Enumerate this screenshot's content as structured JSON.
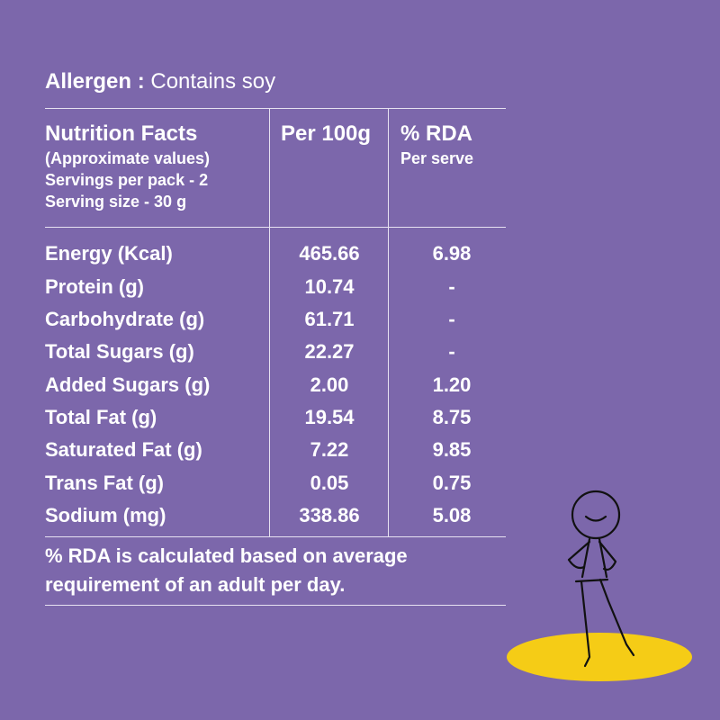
{
  "allergen": {
    "label": "Allergen :",
    "value": "Contains soy"
  },
  "header": {
    "title": "Nutrition Facts",
    "subtitle_lines": [
      "(Approximate values)",
      "Servings per pack - 2",
      "Serving size - 30 g"
    ],
    "col_per100": "Per 100g",
    "col_rda": "% RDA",
    "col_rda_sub": "Per serve"
  },
  "rows": [
    {
      "name": "Energy (Kcal)",
      "per100g": "465.66",
      "rda": "6.98"
    },
    {
      "name": "Protein (g)",
      "per100g": "10.74",
      "rda": "-"
    },
    {
      "name": "Carbohydrate (g)",
      "per100g": "61.71",
      "rda": "-"
    },
    {
      "name": "Total Sugars (g)",
      "per100g": "22.27",
      "rda": "-"
    },
    {
      "name": "Added Sugars (g)",
      "per100g": "2.00",
      "rda": "1.20"
    },
    {
      "name": "Total Fat (g)",
      "per100g": "19.54",
      "rda": "8.75"
    },
    {
      "name": "Saturated Fat (g)",
      "per100g": "7.22",
      "rda": "9.85"
    },
    {
      "name": "Trans Fat (g)",
      "per100g": "0.05",
      "rda": "0.75"
    },
    {
      "name": "Sodium (mg)",
      "per100g": "338.86",
      "rda": "5.08"
    }
  ],
  "footnote": "% RDA is calculated based on average requirement of an adult per day.",
  "colors": {
    "background": "#7c67ab",
    "text": "#ffffff",
    "accent": "#f5cc16"
  },
  "illustration": "stick-figure-on-yellow-spot"
}
